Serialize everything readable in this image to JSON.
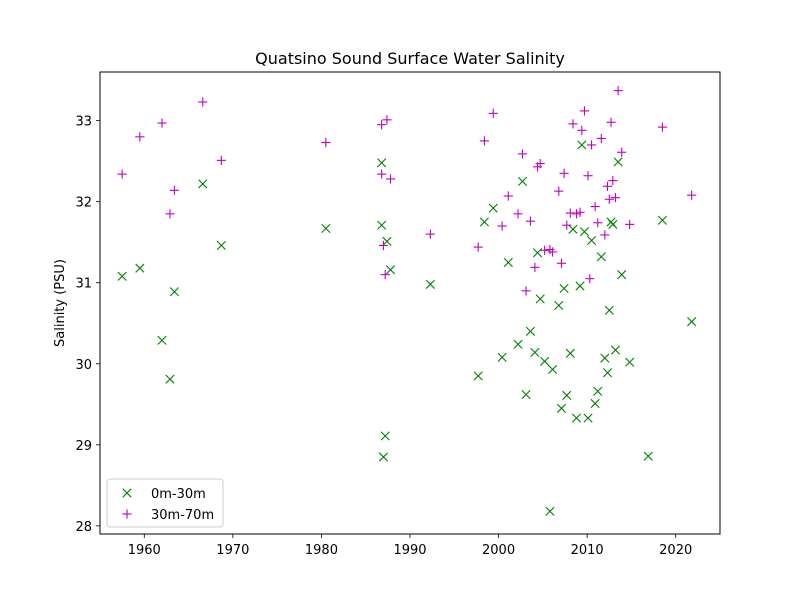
{
  "chart_data": {
    "type": "scatter",
    "title": "Quatsino Sound Surface Water Salinity",
    "xlabel": "",
    "ylabel": "Salinity (PSU)",
    "xlim": [
      1955,
      2025
    ],
    "ylim": [
      27.9,
      33.6
    ],
    "xticks": [
      1960,
      1970,
      1980,
      1990,
      2000,
      2010,
      2020
    ],
    "yticks": [
      28,
      29,
      30,
      31,
      32,
      33
    ],
    "grid": false,
    "legend_position": "lower-left",
    "series": [
      {
        "name": "0m-30m",
        "marker": "x",
        "color": "#008000",
        "points": [
          [
            1957.5,
            31.08
          ],
          [
            1959.5,
            31.18
          ],
          [
            1962.0,
            30.29
          ],
          [
            1962.9,
            29.81
          ],
          [
            1963.4,
            30.89
          ],
          [
            1966.6,
            32.22
          ],
          [
            1968.7,
            31.46
          ],
          [
            1980.5,
            31.67
          ],
          [
            1986.8,
            32.48
          ],
          [
            1986.8,
            31.71
          ],
          [
            1987.0,
            28.85
          ],
          [
            1987.2,
            29.11
          ],
          [
            1987.4,
            31.51
          ],
          [
            1987.8,
            31.16
          ],
          [
            1992.3,
            30.98
          ],
          [
            1997.7,
            29.85
          ],
          [
            1998.4,
            31.75
          ],
          [
            1999.4,
            31.92
          ],
          [
            2000.4,
            30.08
          ],
          [
            2001.1,
            31.25
          ],
          [
            2002.2,
            30.24
          ],
          [
            2002.7,
            32.25
          ],
          [
            2003.1,
            29.62
          ],
          [
            2003.6,
            30.4
          ],
          [
            2004.1,
            30.14
          ],
          [
            2004.4,
            31.37
          ],
          [
            2004.7,
            30.8
          ],
          [
            2005.2,
            30.03
          ],
          [
            2005.8,
            28.18
          ],
          [
            2006.1,
            29.93
          ],
          [
            2006.8,
            30.72
          ],
          [
            2007.1,
            29.45
          ],
          [
            2007.4,
            30.93
          ],
          [
            2007.7,
            29.61
          ],
          [
            2008.1,
            30.13
          ],
          [
            2008.4,
            31.66
          ],
          [
            2008.8,
            29.33
          ],
          [
            2009.2,
            30.96
          ],
          [
            2009.4,
            32.7
          ],
          [
            2009.7,
            31.63
          ],
          [
            2010.1,
            29.33
          ],
          [
            2010.5,
            31.52
          ],
          [
            2010.9,
            29.51
          ],
          [
            2011.2,
            29.66
          ],
          [
            2011.6,
            31.32
          ],
          [
            2012.0,
            30.07
          ],
          [
            2012.3,
            29.89
          ],
          [
            2012.5,
            30.66
          ],
          [
            2012.7,
            31.75
          ],
          [
            2012.9,
            31.72
          ],
          [
            2013.2,
            30.17
          ],
          [
            2013.5,
            32.49
          ],
          [
            2013.9,
            31.1
          ],
          [
            2014.8,
            30.02
          ],
          [
            2016.9,
            28.86
          ],
          [
            2018.5,
            31.77
          ],
          [
            2021.8,
            30.52
          ]
        ]
      },
      {
        "name": "30m-70m",
        "marker": "+",
        "color": "#bf00bf",
        "points": [
          [
            1957.5,
            32.34
          ],
          [
            1959.5,
            32.8
          ],
          [
            1962.0,
            32.97
          ],
          [
            1962.9,
            31.85
          ],
          [
            1963.4,
            32.14
          ],
          [
            1966.6,
            33.23
          ],
          [
            1968.7,
            32.51
          ],
          [
            1980.5,
            32.73
          ],
          [
            1986.8,
            32.95
          ],
          [
            1986.8,
            32.34
          ],
          [
            1987.0,
            31.46
          ],
          [
            1987.2,
            31.1
          ],
          [
            1987.4,
            33.01
          ],
          [
            1987.8,
            32.28
          ],
          [
            1992.3,
            31.6
          ],
          [
            1997.7,
            31.44
          ],
          [
            1998.4,
            32.75
          ],
          [
            1999.4,
            33.09
          ],
          [
            2000.4,
            31.7
          ],
          [
            2001.1,
            32.07
          ],
          [
            2002.2,
            31.85
          ],
          [
            2002.7,
            32.59
          ],
          [
            2003.1,
            30.9
          ],
          [
            2003.6,
            31.76
          ],
          [
            2004.1,
            31.19
          ],
          [
            2004.4,
            32.43
          ],
          [
            2004.7,
            32.47
          ],
          [
            2005.2,
            31.4
          ],
          [
            2005.8,
            31.41
          ],
          [
            2006.1,
            31.38
          ],
          [
            2006.8,
            32.13
          ],
          [
            2007.1,
            31.24
          ],
          [
            2007.4,
            32.35
          ],
          [
            2007.7,
            31.71
          ],
          [
            2008.1,
            31.86
          ],
          [
            2008.4,
            32.96
          ],
          [
            2008.8,
            31.85
          ],
          [
            2009.2,
            31.87
          ],
          [
            2009.4,
            32.88
          ],
          [
            2009.7,
            33.12
          ],
          [
            2010.1,
            32.32
          ],
          [
            2010.3,
            31.05
          ],
          [
            2010.5,
            32.7
          ],
          [
            2010.9,
            31.94
          ],
          [
            2011.2,
            31.74
          ],
          [
            2011.6,
            32.78
          ],
          [
            2012.0,
            31.59
          ],
          [
            2012.3,
            32.19
          ],
          [
            2012.5,
            32.03
          ],
          [
            2012.7,
            32.98
          ],
          [
            2012.9,
            32.26
          ],
          [
            2013.2,
            32.05
          ],
          [
            2013.5,
            33.37
          ],
          [
            2013.9,
            32.61
          ],
          [
            2014.8,
            31.72
          ],
          [
            2018.5,
            32.92
          ],
          [
            2021.8,
            32.08
          ]
        ]
      }
    ]
  }
}
